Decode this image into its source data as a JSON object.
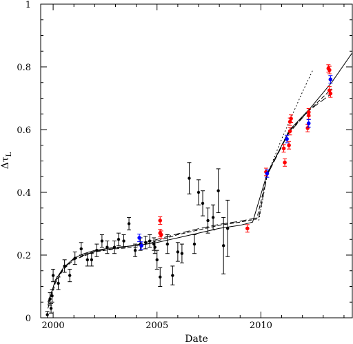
{
  "chart_data": {
    "type": "scatter",
    "xlabel": "Date",
    "ylabel": "Δτ",
    "ylabel_subscript": "L",
    "xlim": [
      1999.4,
      2014.4
    ],
    "ylim": [
      0,
      1
    ],
    "xticks": [
      {
        "value": 2000,
        "label": "2000"
      },
      {
        "value": 2005,
        "label": "2005"
      },
      {
        "value": 2010,
        "label": "2010"
      }
    ],
    "yticks": [
      {
        "value": 0,
        "label": "0"
      },
      {
        "value": 0.2,
        "label": "0.2"
      },
      {
        "value": 0.4,
        "label": "0.4"
      },
      {
        "value": 0.6,
        "label": "0.6"
      },
      {
        "value": 0.8,
        "label": "0.8"
      },
      {
        "value": 1,
        "label": "1"
      }
    ],
    "grid": false,
    "legend": "none",
    "series": [
      {
        "color": "#000000",
        "points": [
          {
            "x": 1999.72,
            "y": 0.01,
            "err": 0.01
          },
          {
            "x": 1999.85,
            "y": 0.06,
            "err": 0.02
          },
          {
            "x": 1999.9,
            "y": 0.03,
            "err": 0.015
          },
          {
            "x": 1999.95,
            "y": 0.07,
            "err": 0.02
          },
          {
            "x": 2000.0,
            "y": 0.135,
            "err": 0.02
          },
          {
            "x": 2000.25,
            "y": 0.11,
            "err": 0.02
          },
          {
            "x": 2000.55,
            "y": 0.165,
            "err": 0.02
          },
          {
            "x": 2000.8,
            "y": 0.135,
            "err": 0.02
          },
          {
            "x": 2001.05,
            "y": 0.19,
            "err": 0.02
          },
          {
            "x": 2001.35,
            "y": 0.22,
            "err": 0.02
          },
          {
            "x": 2001.65,
            "y": 0.185,
            "err": 0.02
          },
          {
            "x": 2001.85,
            "y": 0.185,
            "err": 0.02
          },
          {
            "x": 2002.1,
            "y": 0.215,
            "err": 0.02
          },
          {
            "x": 2002.35,
            "y": 0.245,
            "err": 0.02
          },
          {
            "x": 2002.6,
            "y": 0.225,
            "err": 0.02
          },
          {
            "x": 2002.95,
            "y": 0.225,
            "err": 0.02
          },
          {
            "x": 2003.15,
            "y": 0.25,
            "err": 0.02
          },
          {
            "x": 2003.4,
            "y": 0.245,
            "err": 0.02
          },
          {
            "x": 2003.65,
            "y": 0.3,
            "err": 0.02
          },
          {
            "x": 2003.95,
            "y": 0.215,
            "err": 0.02
          },
          {
            "x": 2004.2,
            "y": 0.235,
            "err": 0.02
          },
          {
            "x": 2004.45,
            "y": 0.24,
            "err": 0.02
          },
          {
            "x": 2004.65,
            "y": 0.245,
            "err": 0.02
          },
          {
            "x": 2004.85,
            "y": 0.235,
            "err": 0.02
          },
          {
            "x": 2004.9,
            "y": 0.225,
            "err": 0.02
          },
          {
            "x": 2005.0,
            "y": 0.185,
            "err": 0.03
          },
          {
            "x": 2005.15,
            "y": 0.13,
            "err": 0.03
          },
          {
            "x": 2005.5,
            "y": 0.235,
            "err": 0.03
          },
          {
            "x": 2005.75,
            "y": 0.135,
            "err": 0.03
          },
          {
            "x": 2006.0,
            "y": 0.21,
            "err": 0.03
          },
          {
            "x": 2006.2,
            "y": 0.205,
            "err": 0.03
          },
          {
            "x": 2006.55,
            "y": 0.445,
            "err": 0.05
          },
          {
            "x": 2006.8,
            "y": 0.235,
            "err": 0.03
          },
          {
            "x": 2007.0,
            "y": 0.4,
            "err": 0.04
          },
          {
            "x": 2007.2,
            "y": 0.365,
            "err": 0.04
          },
          {
            "x": 2007.45,
            "y": 0.31,
            "err": 0.04
          },
          {
            "x": 2007.7,
            "y": 0.32,
            "err": 0.04
          },
          {
            "x": 2007.95,
            "y": 0.405,
            "err": 0.07
          },
          {
            "x": 2008.2,
            "y": 0.23,
            "err": 0.09
          },
          {
            "x": 2008.4,
            "y": 0.285,
            "err": 0.09
          }
        ]
      },
      {
        "color": "#ff0000",
        "points": [
          {
            "x": 2005.15,
            "y": 0.31,
            "err": 0.012
          },
          {
            "x": 2005.15,
            "y": 0.27,
            "err": 0.012
          },
          {
            "x": 2005.2,
            "y": 0.265,
            "err": 0.012
          },
          {
            "x": 2009.35,
            "y": 0.285,
            "err": 0.012
          },
          {
            "x": 2010.25,
            "y": 0.465,
            "err": 0.012
          },
          {
            "x": 2011.1,
            "y": 0.54,
            "err": 0.012
          },
          {
            "x": 2011.15,
            "y": 0.495,
            "err": 0.012
          },
          {
            "x": 2011.35,
            "y": 0.55,
            "err": 0.012
          },
          {
            "x": 2011.4,
            "y": 0.595,
            "err": 0.012
          },
          {
            "x": 2011.4,
            "y": 0.625,
            "err": 0.012
          },
          {
            "x": 2011.45,
            "y": 0.635,
            "err": 0.012
          },
          {
            "x": 2012.25,
            "y": 0.605,
            "err": 0.012
          },
          {
            "x": 2012.3,
            "y": 0.655,
            "err": 0.012
          },
          {
            "x": 2012.3,
            "y": 0.645,
            "err": 0.012
          },
          {
            "x": 2013.25,
            "y": 0.795,
            "err": 0.012
          },
          {
            "x": 2013.3,
            "y": 0.79,
            "err": 0.012
          },
          {
            "x": 2013.3,
            "y": 0.725,
            "err": 0.012
          },
          {
            "x": 2013.35,
            "y": 0.715,
            "err": 0.012
          }
        ]
      },
      {
        "color": "#0000ff",
        "points": [
          {
            "x": 2004.15,
            "y": 0.255,
            "err": 0.012
          },
          {
            "x": 2004.25,
            "y": 0.23,
            "err": 0.012
          },
          {
            "x": 2010.3,
            "y": 0.46,
            "err": 0.012
          },
          {
            "x": 2011.25,
            "y": 0.57,
            "err": 0.012
          },
          {
            "x": 2012.3,
            "y": 0.62,
            "err": 0.012
          },
          {
            "x": 2013.35,
            "y": 0.76,
            "err": 0.012
          }
        ]
      }
    ],
    "curves": [
      {
        "style": "solid",
        "points": [
          [
            1999.75,
            0.04
          ],
          [
            2000.1,
            0.12
          ],
          [
            2000.5,
            0.16
          ],
          [
            2001.0,
            0.19
          ],
          [
            2001.5,
            0.205
          ],
          [
            2002.0,
            0.215
          ],
          [
            2003.0,
            0.225
          ],
          [
            2004.0,
            0.23
          ],
          [
            2005.0,
            0.24
          ],
          [
            2006.0,
            0.255
          ],
          [
            2007.0,
            0.27
          ],
          [
            2008.0,
            0.285
          ],
          [
            2009.0,
            0.295
          ],
          [
            2009.6,
            0.305
          ],
          [
            2010.3,
            0.46
          ],
          [
            2011.4,
            0.6
          ],
          [
            2012.4,
            0.67
          ],
          [
            2013.4,
            0.75
          ],
          [
            2014.4,
            0.845
          ]
        ]
      },
      {
        "style": "dashed",
        "points": [
          [
            1999.75,
            0.03
          ],
          [
            2000.1,
            0.11
          ],
          [
            2000.5,
            0.155
          ],
          [
            2001.0,
            0.185
          ],
          [
            2002.0,
            0.21
          ],
          [
            2003.0,
            0.22
          ],
          [
            2004.0,
            0.225
          ],
          [
            2005.0,
            0.245
          ],
          [
            2006.0,
            0.265
          ],
          [
            2007.0,
            0.28
          ],
          [
            2008.0,
            0.295
          ],
          [
            2009.0,
            0.305
          ],
          [
            2009.8,
            0.315
          ],
          [
            2010.3,
            0.455
          ],
          [
            2011.3,
            0.59
          ],
          [
            2012.3,
            0.66
          ],
          [
            2013.4,
            0.73
          ]
        ]
      },
      {
        "style": "long-dash",
        "points": [
          [
            1999.75,
            0.05
          ],
          [
            2000.1,
            0.115
          ],
          [
            2000.5,
            0.158
          ],
          [
            2001.0,
            0.188
          ],
          [
            2002.0,
            0.212
          ],
          [
            2003.0,
            0.222
          ],
          [
            2004.0,
            0.232
          ],
          [
            2005.0,
            0.25
          ],
          [
            2006.0,
            0.268
          ],
          [
            2007.0,
            0.284
          ],
          [
            2008.0,
            0.298
          ],
          [
            2009.0,
            0.308
          ],
          [
            2009.9,
            0.32
          ],
          [
            2010.3,
            0.455
          ],
          [
            2011.3,
            0.585
          ],
          [
            2012.3,
            0.66
          ],
          [
            2013.4,
            0.715
          ]
        ]
      },
      {
        "style": "dotted",
        "points": [
          [
            2009.9,
            0.31
          ],
          [
            2010.3,
            0.455
          ],
          [
            2011.0,
            0.57
          ],
          [
            2011.5,
            0.645
          ],
          [
            2012.0,
            0.72
          ],
          [
            2012.5,
            0.79
          ]
        ]
      }
    ]
  }
}
